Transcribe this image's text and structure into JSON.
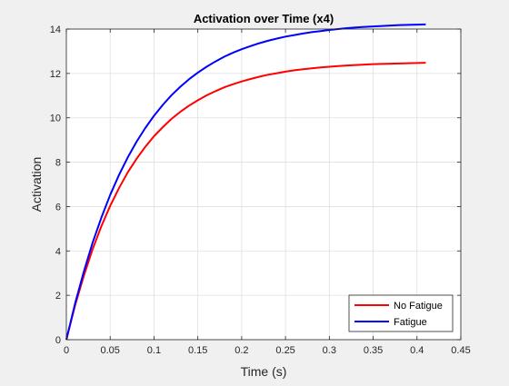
{
  "chart_data": {
    "type": "line",
    "title": "Activation over Time (x4)",
    "xlabel": "Time (s)",
    "ylabel": "Activation",
    "xlim": [
      0,
      0.45
    ],
    "ylim": [
      0,
      14
    ],
    "xticks": [
      0,
      0.05,
      0.1,
      0.15,
      0.2,
      0.25,
      0.3,
      0.35,
      0.4,
      0.45
    ],
    "xtick_labels": [
      "0",
      "0.05",
      "0.1",
      "0.15",
      "0.2",
      "0.25",
      "0.3",
      "0.35",
      "0.4",
      "0.45"
    ],
    "yticks": [
      0,
      2,
      4,
      6,
      8,
      10,
      12,
      14
    ],
    "ytick_labels": [
      "0",
      "2",
      "4",
      "6",
      "8",
      "10",
      "12",
      "14"
    ],
    "grid": true,
    "legend_position": "bottom-right",
    "series": [
      {
        "name": "No Fatigue",
        "color": "#ff0000",
        "x": [
          0,
          0.01,
          0.02,
          0.03,
          0.04,
          0.05,
          0.06,
          0.07,
          0.08,
          0.09,
          0.1,
          0.11,
          0.12,
          0.13,
          0.14,
          0.15,
          0.16,
          0.17,
          0.18,
          0.19,
          0.2,
          0.21,
          0.22,
          0.23,
          0.24,
          0.25,
          0.26,
          0.27,
          0.28,
          0.29,
          0.3,
          0.31,
          0.32,
          0.33,
          0.34,
          0.35,
          0.36,
          0.37,
          0.38,
          0.39,
          0.4,
          0.41
        ],
        "y": [
          0,
          1.54,
          2.89,
          4.08,
          5.12,
          6.03,
          6.83,
          7.54,
          8.15,
          8.69,
          9.17,
          9.58,
          9.95,
          10.27,
          10.55,
          10.79,
          11.01,
          11.2,
          11.37,
          11.51,
          11.64,
          11.75,
          11.85,
          11.94,
          12.01,
          12.08,
          12.14,
          12.19,
          12.23,
          12.27,
          12.3,
          12.33,
          12.36,
          12.38,
          12.4,
          12.42,
          12.43,
          12.44,
          12.45,
          12.46,
          12.47,
          12.48
        ]
      },
      {
        "name": "Fatigue",
        "color": "#0000ff",
        "x": [
          0,
          0.01,
          0.02,
          0.03,
          0.04,
          0.05,
          0.06,
          0.07,
          0.08,
          0.09,
          0.1,
          0.11,
          0.12,
          0.13,
          0.14,
          0.15,
          0.16,
          0.17,
          0.18,
          0.19,
          0.2,
          0.21,
          0.22,
          0.23,
          0.24,
          0.25,
          0.26,
          0.27,
          0.28,
          0.29,
          0.3,
          0.31,
          0.32,
          0.33,
          0.34,
          0.35,
          0.36,
          0.37,
          0.38,
          0.39,
          0.4,
          0.41
        ],
        "y": [
          0,
          1.63,
          3.08,
          4.37,
          5.51,
          6.52,
          7.42,
          8.21,
          8.92,
          9.54,
          10.09,
          10.58,
          11.02,
          11.4,
          11.74,
          12.04,
          12.3,
          12.54,
          12.75,
          12.93,
          13.09,
          13.23,
          13.36,
          13.47,
          13.57,
          13.66,
          13.73,
          13.8,
          13.86,
          13.91,
          13.96,
          14.0,
          14.04,
          14.07,
          14.1,
          14.12,
          14.14,
          14.16,
          14.18,
          14.19,
          14.2,
          14.21
        ]
      }
    ]
  }
}
